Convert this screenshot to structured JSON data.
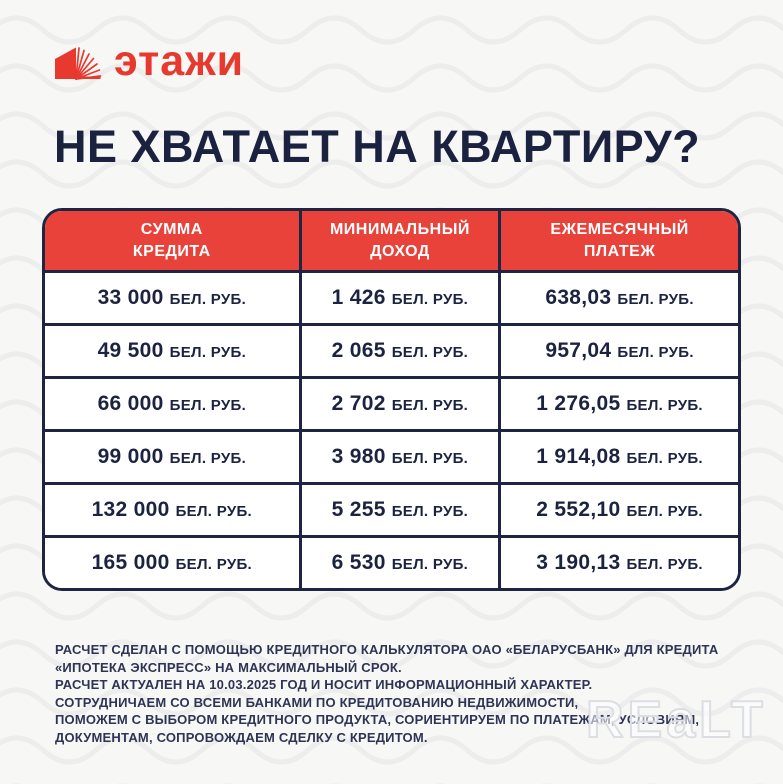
{
  "brand": {
    "name": "этажи",
    "color": "#e8392e"
  },
  "title": "НЕ ХВАТАЕТ НА КВАРТИРУ?",
  "chart_data": {
    "type": "table",
    "columns": [
      "СУММА\nКРЕДИТА",
      "МИНИМАЛЬНЫЙ\nДОХОД",
      "ЕЖЕМЕСЯЧНЫЙ\nПЛАТЕЖ"
    ],
    "unit": "БЕЛ. РУБ.",
    "rows": [
      {
        "credit": "33 000",
        "income": "1 426",
        "payment": "638,03"
      },
      {
        "credit": "49 500",
        "income": "2 065",
        "payment": "957,04"
      },
      {
        "credit": "66 000",
        "income": "2 702",
        "payment": "1 276,05"
      },
      {
        "credit": "99 000",
        "income": "3 980",
        "payment": "1 914,08"
      },
      {
        "credit": "132 000",
        "income": "5 255",
        "payment": "2 552,10"
      },
      {
        "credit": "165 000",
        "income": "6 530",
        "payment": "3 190,13"
      }
    ]
  },
  "disclaimer": {
    "lines": [
      "РАСЧЕТ СДЕЛАН С ПОМОЩЬЮ КРЕДИТНОГО КАЛЬКУЛЯТОРА ОАО «БЕЛАРУСБАНК» ДЛЯ КРЕДИТА",
      "«ИПОТЕКА ЭКСПРЕСС» НА МАКСИМАЛЬНЫЙ СРОК.",
      "РАСЧЕТ АКТУАЛЕН НА 10.03.2025 ГОД И НОСИТ ИНФОРМАЦИОННЫЙ ХАРАКТЕР.",
      "СОТРУДНИЧАЕМ СО ВСЕМИ БАНКАМИ ПО КРЕДИТОВАНИЮ НЕДВИЖИМОСТИ,",
      "ПОМОЖЕМ С ВЫБОРОМ КРЕДИТНОГО ПРОДУКТА, СОРИЕНТИРУЕМ ПО ПЛАТЕЖАМ, УСЛОВИЯМ,",
      "ДОКУМЕНТАМ, СОПРОВОЖДАЕМ СДЕЛКУ С КРЕДИТОМ."
    ]
  },
  "watermark": "REaLT",
  "colors": {
    "brand_red": "#e8392e",
    "header_red": "#e9423b",
    "navy": "#1e2543",
    "text_navy": "#1c2340",
    "background": "#f6f6f5"
  }
}
